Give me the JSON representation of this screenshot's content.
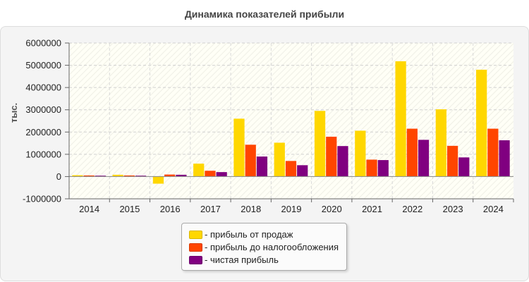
{
  "chart_data": {
    "type": "bar",
    "title": "Динамика показателей прибыли",
    "xlabel": "",
    "ylabel": "тыс.",
    "ylim": [
      -1000000,
      6000000
    ],
    "yticks": [
      6000000,
      5000000,
      4000000,
      3000000,
      2000000,
      1000000,
      0,
      -1000000
    ],
    "ytick_labels": [
      "6000000",
      "5000000",
      "4000000",
      "3000000",
      "2000000",
      "1000000",
      "0",
      "-1000000"
    ],
    "categories": [
      "2014",
      "2015",
      "2016",
      "2017",
      "2018",
      "2019",
      "2020",
      "2021",
      "2022",
      "2023",
      "2024"
    ],
    "grid": true,
    "legend_position": "bottom-center",
    "series": [
      {
        "name": "- прибыль от продаж",
        "color": "#FFD700",
        "values": [
          60000,
          80000,
          -320000,
          580000,
          2600000,
          1520000,
          2950000,
          2060000,
          5180000,
          3020000,
          4800000
        ]
      },
      {
        "name": "- прибыль до налогообложения",
        "color": "#FF4500",
        "values": [
          50000,
          50000,
          90000,
          260000,
          1430000,
          700000,
          1790000,
          760000,
          2150000,
          1380000,
          2150000
        ]
      },
      {
        "name": "- чистая прибыль",
        "color": "#800080",
        "values": [
          40000,
          40000,
          80000,
          200000,
          900000,
          510000,
          1370000,
          740000,
          1650000,
          860000,
          1630000
        ]
      }
    ]
  }
}
